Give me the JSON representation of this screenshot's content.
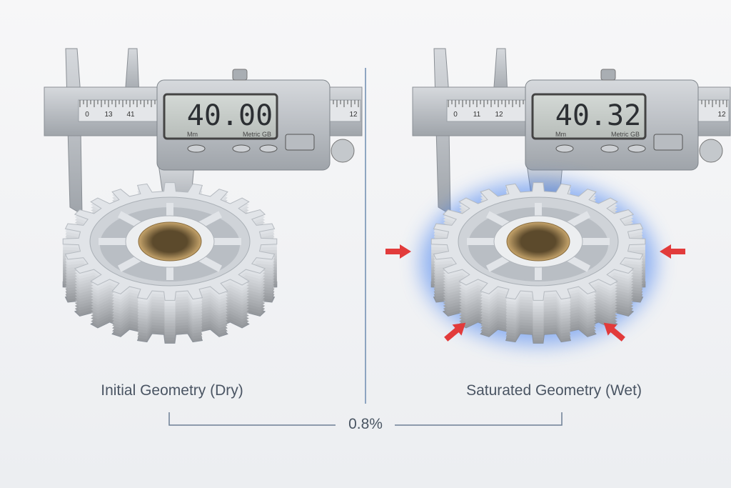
{
  "panels": [
    {
      "label": "Initial Geometry (Dry)",
      "reading": "40.00",
      "scale": [
        "0",
        "13",
        "41",
        "12"
      ],
      "units": "Mm",
      "mode": "Metric GB"
    },
    {
      "label": "Saturated Geometry (Wet)",
      "reading": "40.32",
      "scale": [
        "0",
        "11",
        "12",
        "12"
      ],
      "units": "Mm",
      "mode": "Metric GB"
    }
  ],
  "difference": "0.8%"
}
